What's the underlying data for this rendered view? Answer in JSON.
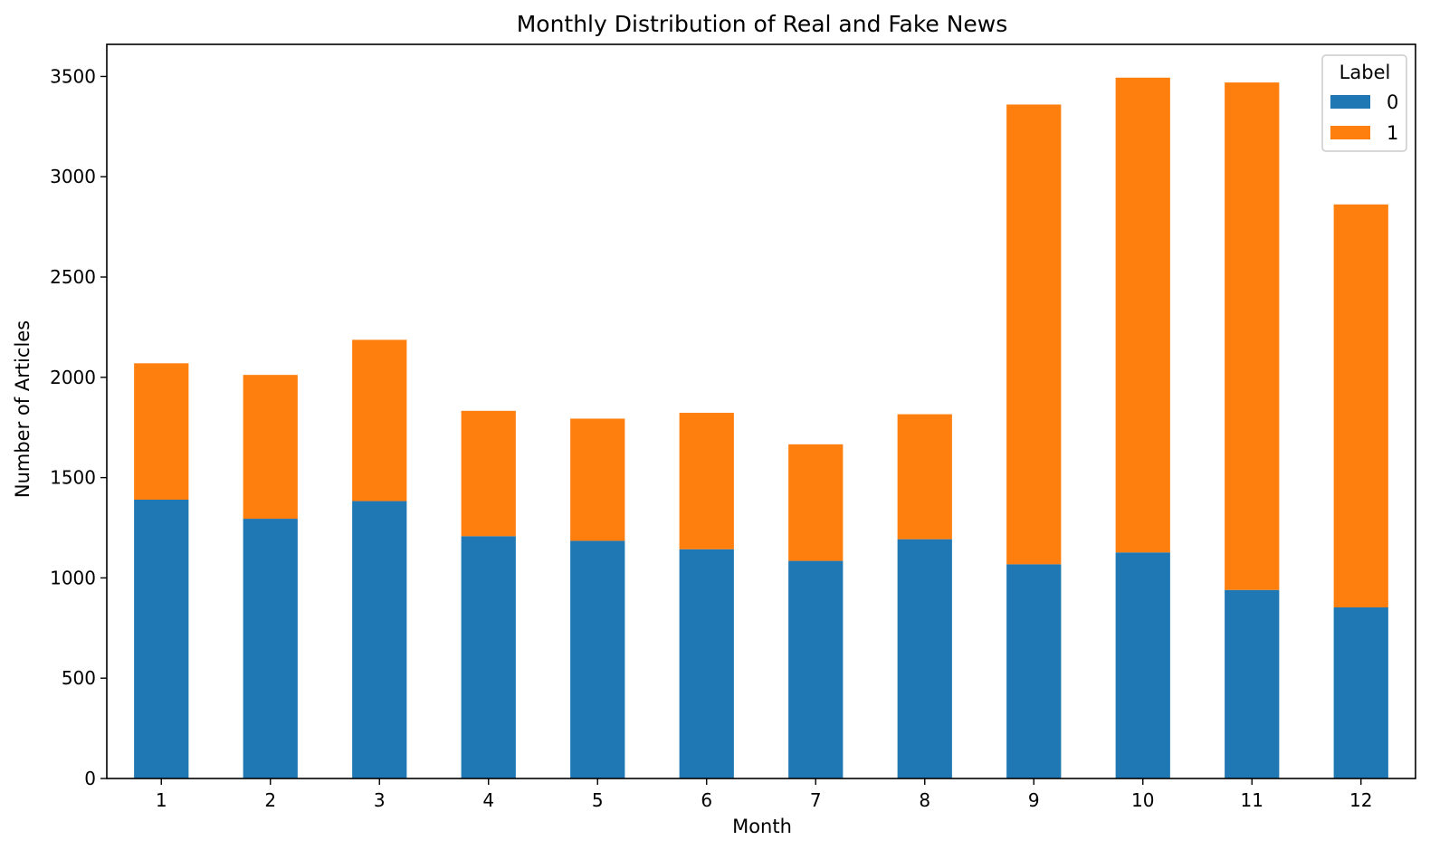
{
  "chart_data": {
    "type": "bar",
    "stacked": true,
    "title": "Monthly Distribution of Real and Fake News",
    "xlabel": "Month",
    "ylabel": "Number of Articles",
    "categories": [
      "1",
      "2",
      "3",
      "4",
      "5",
      "6",
      "7",
      "8",
      "9",
      "10",
      "11",
      "12"
    ],
    "series": [
      {
        "name": "0",
        "color": "#1f77b4",
        "values": [
          1390,
          1295,
          1383,
          1208,
          1185,
          1143,
          1085,
          1193,
          1068,
          1127,
          940,
          853
        ]
      },
      {
        "name": "1",
        "color": "#ff7f0e",
        "values": [
          680,
          717,
          804,
          625,
          609,
          680,
          581,
          623,
          2292,
          2367,
          2530,
          2009
        ]
      }
    ],
    "ylim": [
      0,
      3660
    ],
    "yticks": [
      0,
      500,
      1000,
      1500,
      2000,
      2500,
      3000,
      3500
    ],
    "grid": false,
    "legend": {
      "title": "Label",
      "position": "top-right"
    }
  }
}
